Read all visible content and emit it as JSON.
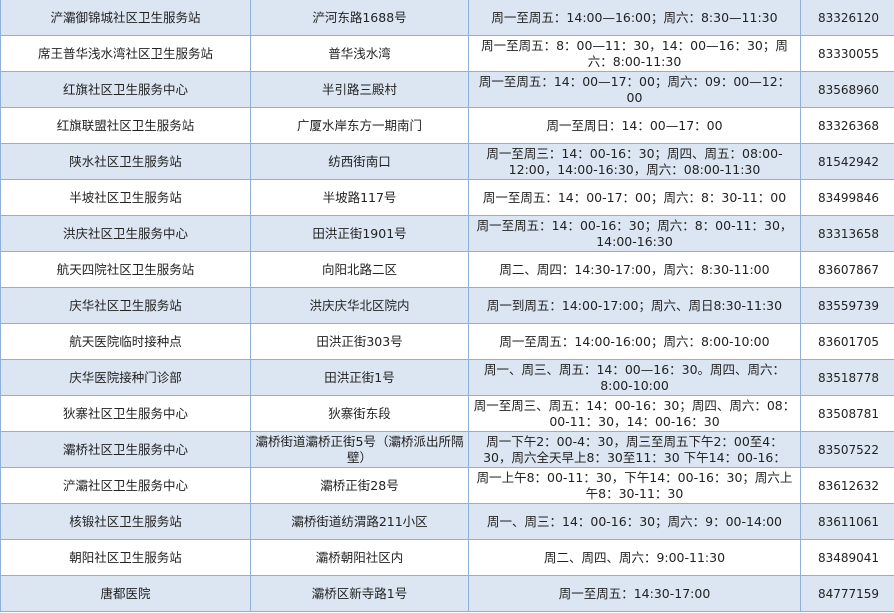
{
  "rows": [
    {
      "name": "浐灞御锦城社区卫生服务站",
      "address": "浐河东路1688号",
      "hours": "周一至周五：14:00—16:00；周六：8:30—11:30",
      "phone": "83326120"
    },
    {
      "name": "席王普华浅水湾社区卫生服务站",
      "address": "普华浅水湾",
      "hours": "周一至周五：8：00—11：30，14：00—16：30；周六：8:00-11:30",
      "phone": "83330055"
    },
    {
      "name": "红旗社区卫生服务中心",
      "address": "半引路三殿村",
      "hours": "周一至周五：14：00—17：00；周六：09：00—12：00",
      "phone": "83568960"
    },
    {
      "name": "红旗联盟社区卫生服务站",
      "address": "广厦水岸东方一期南门",
      "hours": "周一至周日：14：00—17：00",
      "phone": "83326368"
    },
    {
      "name": "陕水社区卫生服务站",
      "address": "纺西街南口",
      "hours": "周一至周三：14：00-16：30；周四、周五：08:00-12:00，14:00-16:30，周六：08:00-11:30",
      "phone": "81542942"
    },
    {
      "name": "半坡社区卫生服务站",
      "address": "半坡路117号",
      "hours": "周一至周五：14：00-17：00；周六：8：30-11：00",
      "phone": "83499846"
    },
    {
      "name": "洪庆社区卫生服务中心",
      "address": "田洪正街1901号",
      "hours": "周一至周五：14：00-16：30；周六：8：00-11：30，14:00-16:30",
      "phone": "83313658"
    },
    {
      "name": "航天四院社区卫生服务站",
      "address": "向阳北路二区",
      "hours": "周二、周四：14:30-17:00，周六：8:30-11:00",
      "phone": "83607867"
    },
    {
      "name": "庆华社区卫生服务站",
      "address": "洪庆庆华北区院内",
      "hours": "周一到周五：14:00-17:00；周六、周日8:30-11:30",
      "phone": "83559739"
    },
    {
      "name": "航天医院临时接种点",
      "address": "田洪正街303号",
      "hours": "周一至周五：14:00-16:00；周六：8:00-10:00",
      "phone": "83601705"
    },
    {
      "name": "庆华医院接种门诊部",
      "address": "田洪正街1号",
      "hours": "周一、周三、周五：14：00—16：30。周四、周六：8:00-10:00",
      "phone": "83518778"
    },
    {
      "name": "狄寨社区卫生服务中心",
      "address": "狄寨街东段",
      "hours": "周一至周三、周五：14：00-16：30；周四、周六：08：00-11：30，14：00-16：30",
      "phone": "83508781"
    },
    {
      "name": "灞桥社区卫生服务中心",
      "address": "灞桥街道灞桥正街5号（灞桥派出所隔壁）",
      "hours": "周一下午2：00-4：30，周三至周五下午2：00至4：30，周六全天早上8：30至11：30 下午14：00-16：",
      "phone": "83507522"
    },
    {
      "name": "浐灞社区卫生服务中心",
      "address": "灞桥正街28号",
      "hours": "周一上午8：00-11：30，下午14：00-16：30；周六上午8：30-11：30",
      "phone": "83612632"
    },
    {
      "name": "核锻社区卫生服务站",
      "address": "灞桥街道纺渭路211小区",
      "hours": "周一、周三：14：00-16：30；周六：9：00-14:00",
      "phone": "83611061"
    },
    {
      "name": "朝阳社区卫生服务站",
      "address": "灞桥朝阳社区内",
      "hours": "周二、周四、周六：9:00-11:30",
      "phone": "83489041"
    },
    {
      "name": "唐都医院",
      "address": "灞桥区新寺路1号",
      "hours": "周一至周五：14:30-17:00",
      "phone": "84777159"
    }
  ],
  "colors": {
    "alt_row": "#dce6f2",
    "border": "#8eb0d6"
  }
}
